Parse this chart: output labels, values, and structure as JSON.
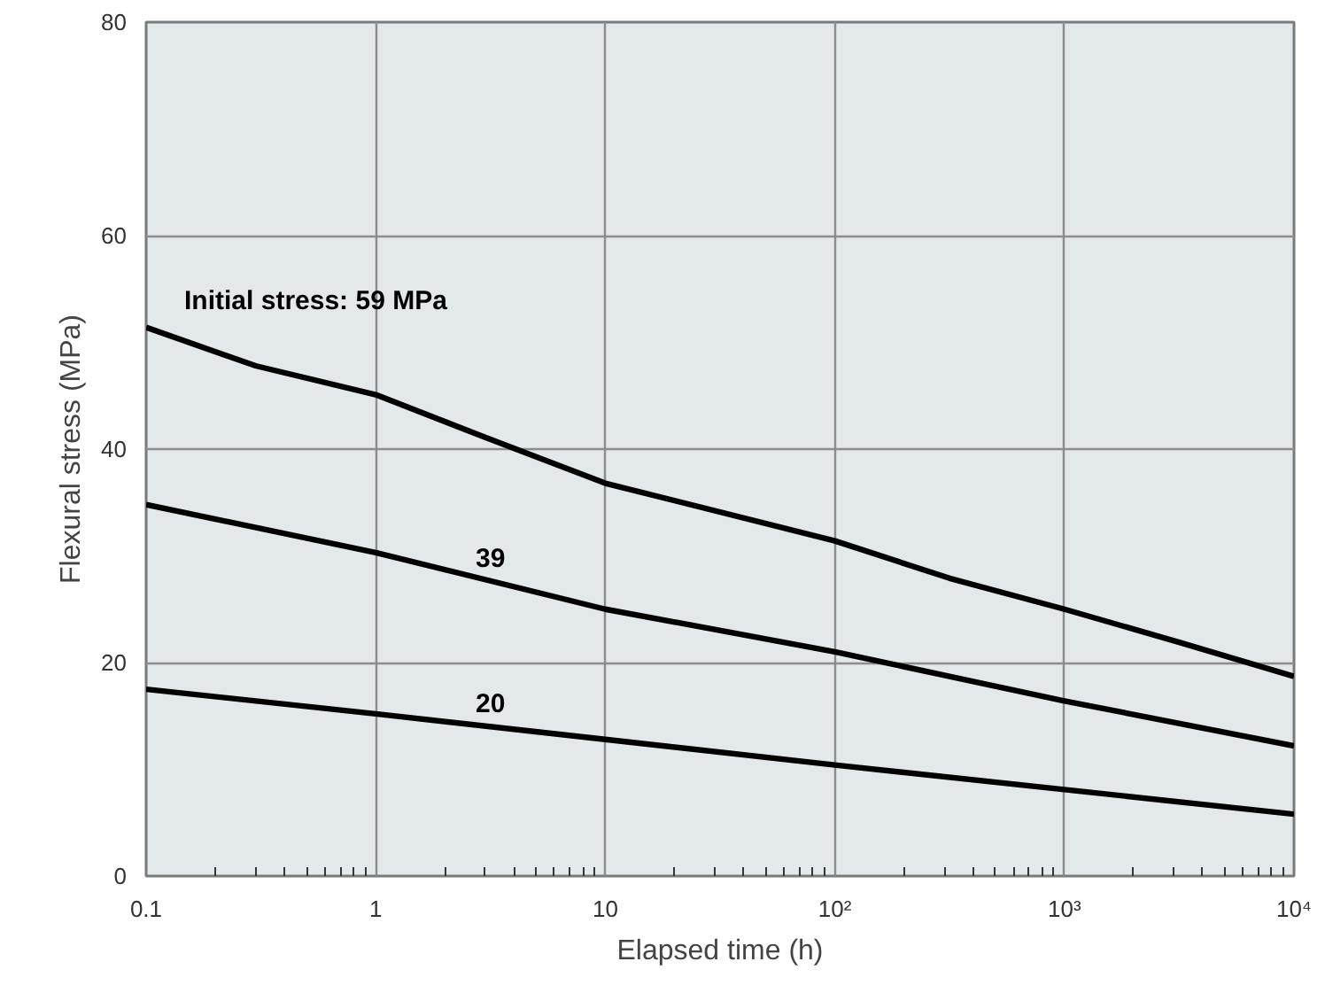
{
  "chart_data": {
    "type": "line",
    "xlabel": "Elapsed time (h)",
    "ylabel": "Flexural stress (MPa)",
    "log": "x",
    "x": [
      0.1,
      0.3,
      1,
      3,
      10,
      100,
      316,
      1000,
      3162,
      10000
    ],
    "series": [
      {
        "name": "Initial stress: 59 MPa",
        "color": "#000000",
        "values": [
          51.4,
          47.8,
          45.1,
          41.1,
          36.8,
          31.4,
          27.9,
          25.0,
          21.9,
          18.7
        ]
      },
      {
        "name": "39",
        "color": "#000000",
        "values": [
          34.8,
          null,
          30.3,
          null,
          25.0,
          21.0,
          null,
          16.4,
          null,
          12.2
        ]
      },
      {
        "name": "20",
        "color": "#000000",
        "values": [
          17.5,
          null,
          15.2,
          null,
          12.8,
          10.4,
          null,
          8.1,
          null,
          5.8
        ]
      }
    ],
    "xlim": [
      0.1,
      10000
    ],
    "ylim": [
      0,
      80
    ],
    "xticks": [
      0.1,
      1,
      10,
      {
        "value": 100,
        "label": "10²"
      },
      {
        "value": 1000,
        "label": "10³"
      },
      {
        "value": 10000,
        "label": "10⁴"
      }
    ],
    "yticks": [
      0,
      20,
      40,
      60,
      80
    ],
    "grid": true,
    "legend": false,
    "marker": "none",
    "line_style": "solid"
  }
}
